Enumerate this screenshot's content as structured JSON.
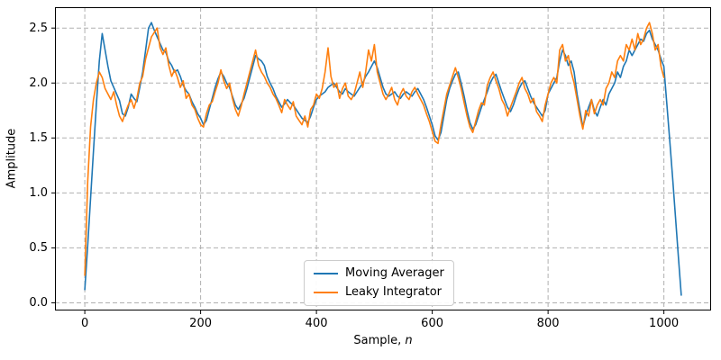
{
  "figure": {
    "title": "",
    "xlabel_prefix": "Sample, ",
    "xlabel_italic": "n",
    "ylabel": "Amplitude"
  },
  "chart_data": {
    "type": "line",
    "title": "",
    "xlabel": "Sample, n",
    "ylabel": "Amplitude",
    "grid": true,
    "grid_style": "dashed",
    "legend_position": "lower center",
    "xlim": [
      -51.5,
      1081.5
    ],
    "ylim": [
      -0.07,
      2.69
    ],
    "xticks": {
      "values": [
        0,
        200,
        400,
        600,
        800,
        1000
      ],
      "labels": [
        "0",
        "200",
        "400",
        "600",
        "800",
        "1000"
      ]
    },
    "yticks": {
      "values": [
        0,
        0.5,
        1,
        1.5,
        2,
        2.5
      ],
      "labels": [
        "0.0",
        "0.5",
        "1.0",
        "1.5",
        "2.0",
        "2.5"
      ]
    },
    "x_start": 0,
    "x_step": 5,
    "series": [
      {
        "name": "Moving Averager",
        "color": "#1f77b4",
        "values": [
          0.12,
          0.52,
          0.95,
          1.38,
          1.8,
          2.2,
          2.45,
          2.3,
          2.15,
          2.02,
          1.96,
          1.9,
          1.84,
          1.72,
          1.7,
          1.78,
          1.9,
          1.86,
          1.83,
          1.96,
          2.1,
          2.3,
          2.5,
          2.55,
          2.48,
          2.42,
          2.36,
          2.3,
          2.28,
          2.2,
          2.16,
          2.1,
          2.12,
          2.06,
          1.98,
          1.93,
          1.9,
          1.83,
          1.78,
          1.72,
          1.68,
          1.62,
          1.66,
          1.76,
          1.86,
          1.96,
          2.04,
          2.1,
          2.06,
          2.0,
          1.96,
          1.88,
          1.8,
          1.76,
          1.81,
          1.86,
          1.95,
          2.05,
          2.15,
          2.25,
          2.22,
          2.2,
          2.16,
          2.06,
          2.0,
          1.95,
          1.88,
          1.83,
          1.78,
          1.81,
          1.85,
          1.82,
          1.8,
          1.76,
          1.72,
          1.68,
          1.66,
          1.64,
          1.7,
          1.78,
          1.85,
          1.88,
          1.9,
          1.92,
          1.96,
          1.98,
          2.0,
          1.96,
          1.92,
          1.9,
          1.95,
          1.92,
          1.9,
          1.88,
          1.92,
          1.96,
          2.0,
          2.06,
          2.1,
          2.15,
          2.2,
          2.14,
          2.05,
          1.96,
          1.9,
          1.88,
          1.9,
          1.92,
          1.88,
          1.86,
          1.9,
          1.92,
          1.9,
          1.88,
          1.92,
          1.95,
          1.9,
          1.85,
          1.78,
          1.7,
          1.62,
          1.52,
          1.48,
          1.55,
          1.7,
          1.85,
          1.95,
          2.02,
          2.08,
          2.1,
          2.0,
          1.88,
          1.75,
          1.64,
          1.58,
          1.62,
          1.7,
          1.78,
          1.85,
          1.92,
          2.0,
          2.05,
          2.08,
          2.0,
          1.92,
          1.85,
          1.78,
          1.74,
          1.8,
          1.88,
          1.95,
          2.0,
          2.02,
          1.95,
          1.88,
          1.82,
          1.78,
          1.74,
          1.7,
          1.75,
          1.9,
          1.95,
          2.0,
          2.05,
          2.2,
          2.3,
          2.25,
          2.16,
          2.2,
          2.1,
          1.9,
          1.75,
          1.6,
          1.7,
          1.78,
          1.85,
          1.75,
          1.7,
          1.78,
          1.85,
          1.8,
          1.9,
          1.95,
          2.0,
          2.1,
          2.05,
          2.15,
          2.2,
          2.3,
          2.25,
          2.3,
          2.35,
          2.4,
          2.38,
          2.45,
          2.48,
          2.4,
          2.35,
          2.3,
          2.22,
          2.15,
          1.82,
          1.48,
          1.14,
          0.78,
          0.42,
          0.07
        ]
      },
      {
        "name": "Leaky Integrator",
        "color": "#ff7f0e",
        "values": [
          0.25,
          1.1,
          1.6,
          1.85,
          2.0,
          2.1,
          2.05,
          1.95,
          1.9,
          1.85,
          1.92,
          1.8,
          1.7,
          1.65,
          1.73,
          1.8,
          1.85,
          1.77,
          1.86,
          2.0,
          2.06,
          2.22,
          2.32,
          2.42,
          2.46,
          2.5,
          2.32,
          2.26,
          2.32,
          2.16,
          2.06,
          2.12,
          2.05,
          1.96,
          2.02,
          1.86,
          1.9,
          1.8,
          1.76,
          1.68,
          1.62,
          1.6,
          1.72,
          1.8,
          1.83,
          1.92,
          2.0,
          2.12,
          2.02,
          1.95,
          2.0,
          1.86,
          1.76,
          1.7,
          1.79,
          1.9,
          2.0,
          2.1,
          2.2,
          2.3,
          2.16,
          2.1,
          2.06,
          2.0,
          1.96,
          1.9,
          1.86,
          1.8,
          1.73,
          1.85,
          1.8,
          1.76,
          1.83,
          1.7,
          1.66,
          1.62,
          1.7,
          1.6,
          1.76,
          1.8,
          1.9,
          1.86,
          1.95,
          2.1,
          2.32,
          2.06,
          1.96,
          2.0,
          1.86,
          1.95,
          2.0,
          1.88,
          1.85,
          1.9,
          2.0,
          2.1,
          1.96,
          2.1,
          2.3,
          2.2,
          2.35,
          2.1,
          2.0,
          1.9,
          1.85,
          1.9,
          1.96,
          1.85,
          1.8,
          1.9,
          1.95,
          1.88,
          1.85,
          1.92,
          1.96,
          1.9,
          1.85,
          1.8,
          1.72,
          1.65,
          1.56,
          1.47,
          1.45,
          1.62,
          1.76,
          1.9,
          1.98,
          2.06,
          2.14,
          2.05,
          1.95,
          1.82,
          1.7,
          1.6,
          1.55,
          1.65,
          1.75,
          1.82,
          1.8,
          1.98,
          2.05,
          2.1,
          2.02,
          1.95,
          1.85,
          1.8,
          1.7,
          1.78,
          1.85,
          1.92,
          2.0,
          2.05,
          1.95,
          1.9,
          1.82,
          1.86,
          1.74,
          1.7,
          1.65,
          1.8,
          1.9,
          2.0,
          2.05,
          2.0,
          2.3,
          2.35,
          2.2,
          2.25,
          2.1,
          2.0,
          1.85,
          1.7,
          1.58,
          1.75,
          1.7,
          1.85,
          1.72,
          1.8,
          1.85,
          1.8,
          1.95,
          2.0,
          2.1,
          2.05,
          2.2,
          2.25,
          2.2,
          2.35,
          2.3,
          2.4,
          2.3,
          2.45,
          2.35,
          2.4,
          2.5,
          2.55,
          2.45,
          2.3,
          2.35,
          2.15,
          2.05
        ]
      }
    ]
  }
}
